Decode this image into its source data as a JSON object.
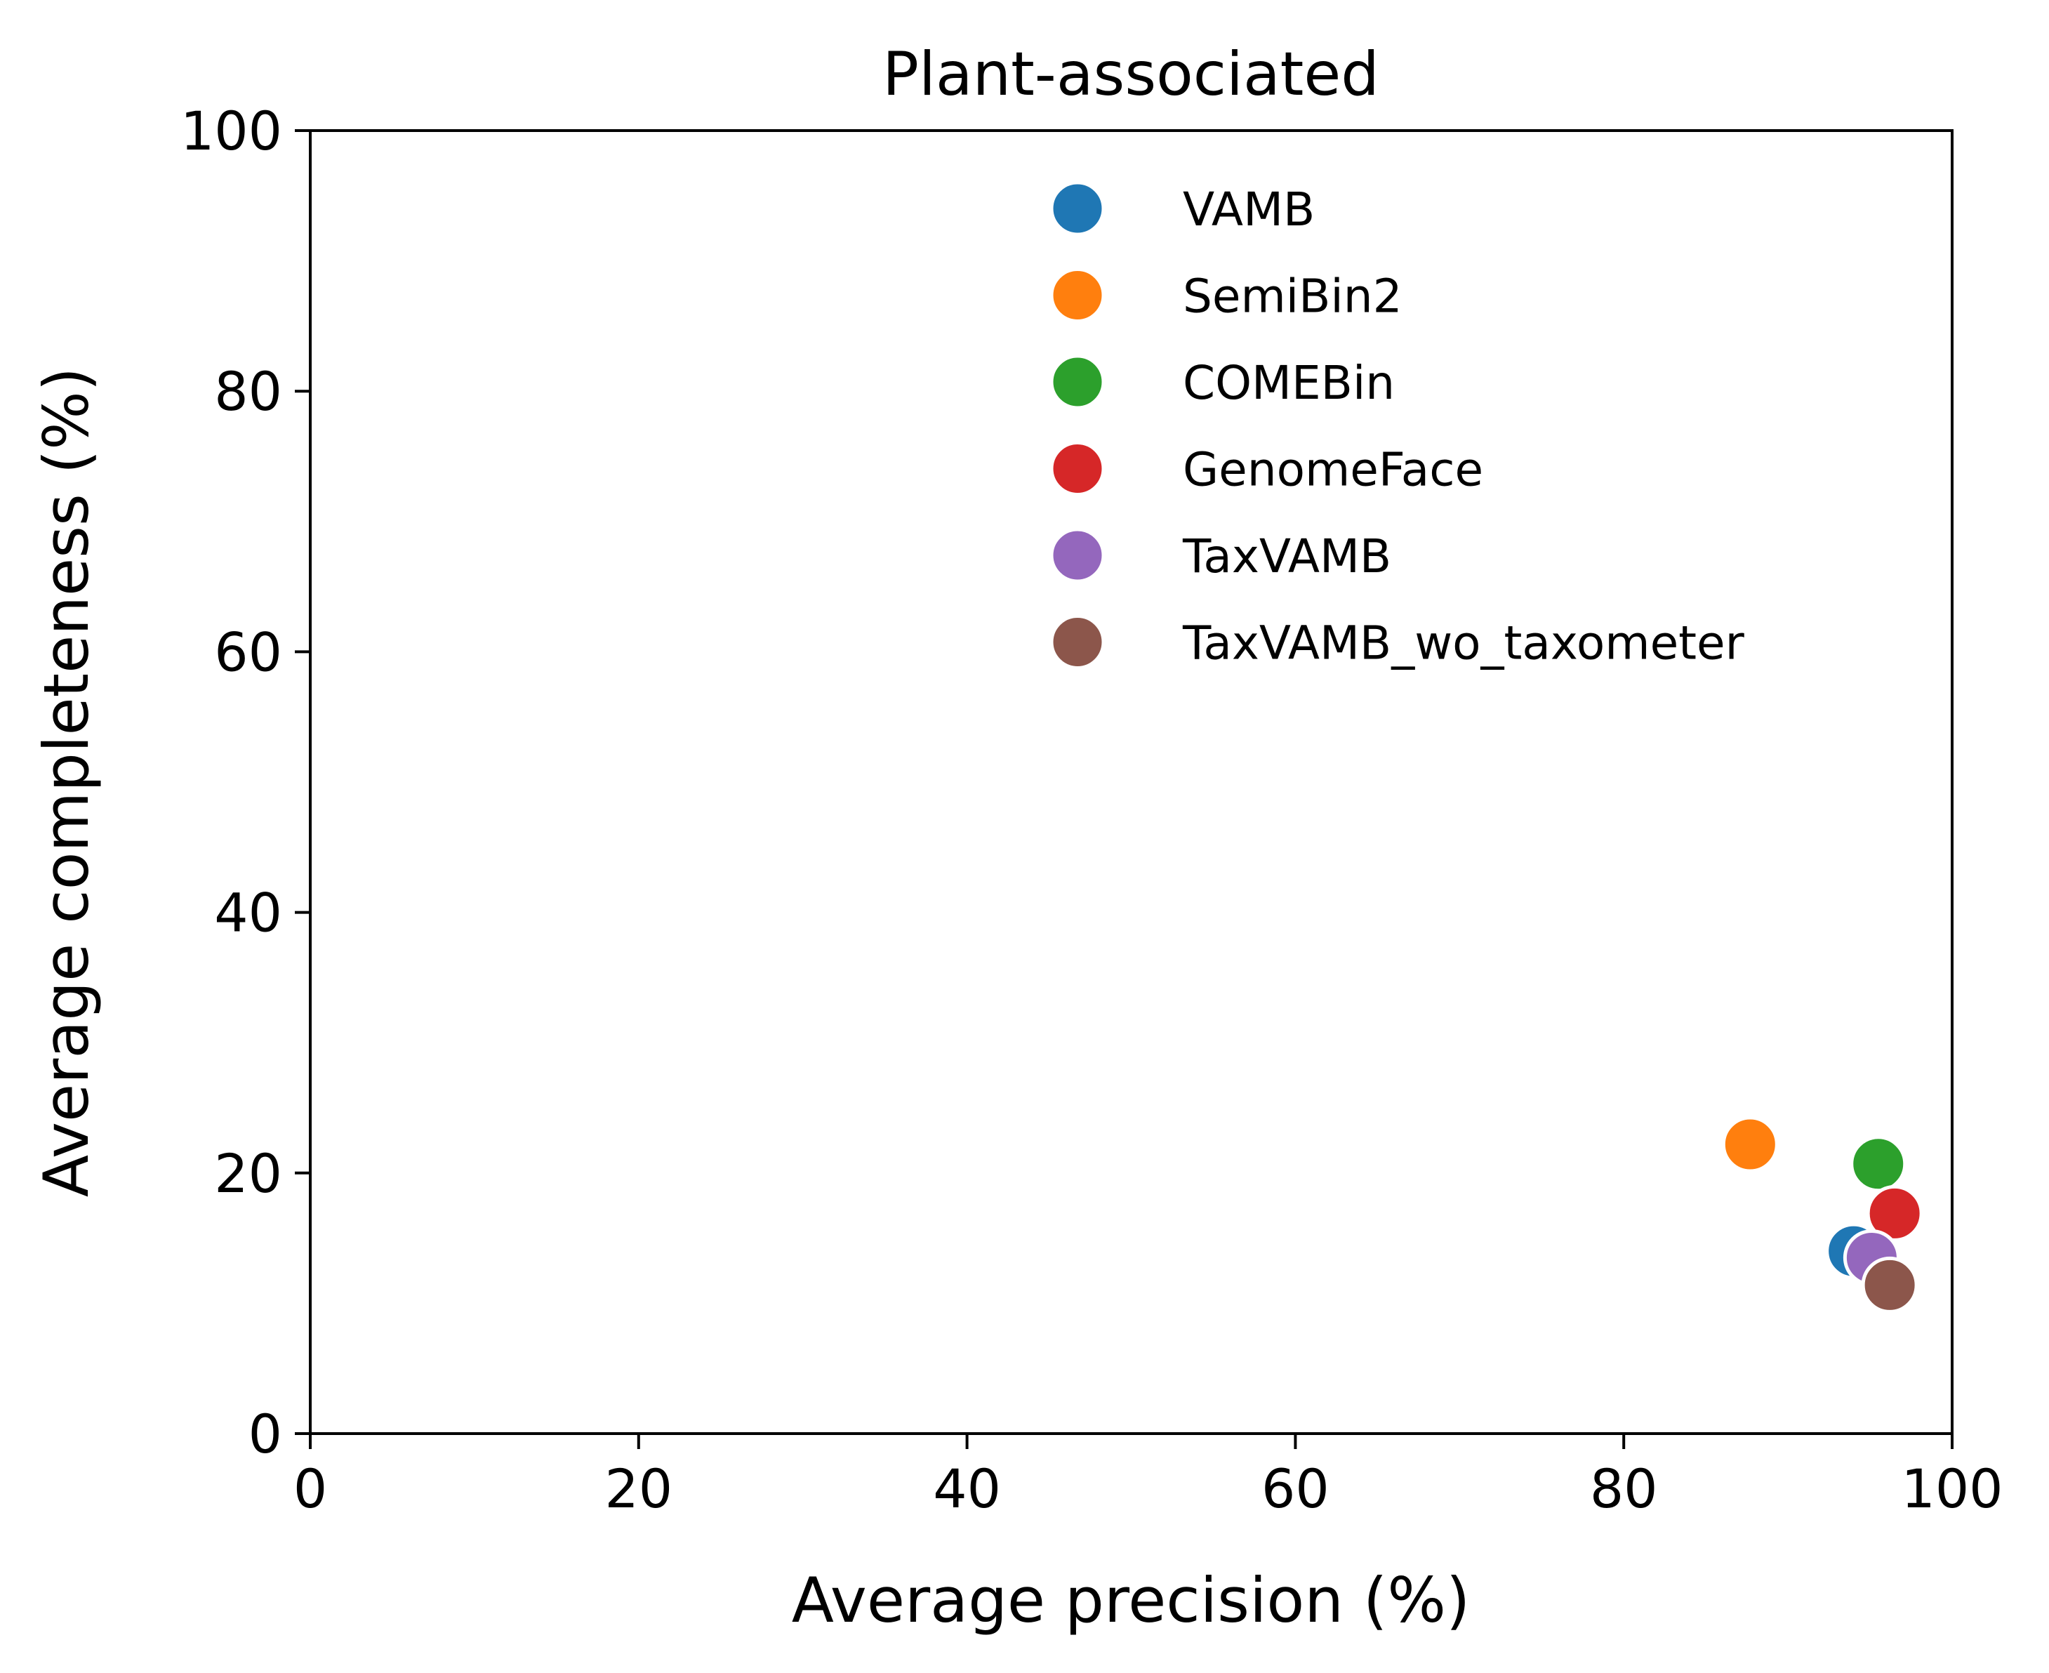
{
  "chart_data": {
    "type": "scatter",
    "title": "Plant-associated",
    "xlabel": "Average precision (%)",
    "ylabel": "Average completeness (%)",
    "xlim": [
      0,
      100
    ],
    "ylim": [
      0,
      100
    ],
    "xticks": [
      0,
      20,
      40,
      60,
      80,
      100
    ],
    "yticks": [
      0,
      20,
      40,
      60,
      80,
      100
    ],
    "grid": false,
    "legend_position": "upper-right",
    "series": [
      {
        "name": "VAMB",
        "color": "#1f77b4",
        "x": [
          94.0
        ],
        "y": [
          14.0
        ]
      },
      {
        "name": "SemiBin2",
        "color": "#ff7f0e",
        "x": [
          87.7
        ],
        "y": [
          22.2
        ]
      },
      {
        "name": "COMEBin",
        "color": "#2ca02c",
        "x": [
          95.5
        ],
        "y": [
          20.7
        ]
      },
      {
        "name": "GenomeFace",
        "color": "#d62728",
        "x": [
          96.5
        ],
        "y": [
          16.9
        ]
      },
      {
        "name": "TaxVAMB",
        "color": "#9467bd",
        "x": [
          95.1
        ],
        "y": [
          13.5
        ]
      },
      {
        "name": "TaxVAMB_wo_taxometer",
        "color": "#8c564b",
        "x": [
          96.2
        ],
        "y": [
          11.4
        ]
      }
    ]
  }
}
